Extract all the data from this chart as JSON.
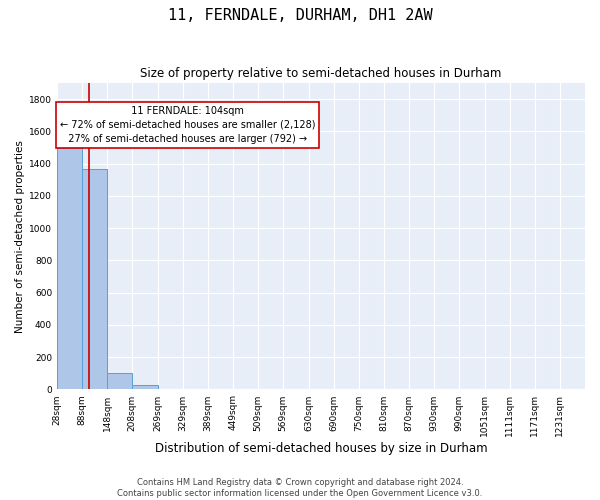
{
  "title": "11, FERNDALE, DURHAM, DH1 2AW",
  "subtitle": "Size of property relative to semi-detached houses in Durham",
  "xlabel": "Distribution of semi-detached houses by size in Durham",
  "ylabel": "Number of semi-detached properties",
  "footer_line1": "Contains HM Land Registry data © Crown copyright and database right 2024.",
  "footer_line2": "Contains public sector information licensed under the Open Government Licence v3.0.",
  "property_size": 104,
  "property_label": "11 FERNDALE: 104sqm",
  "pct_smaller": 72,
  "pct_larger": 27,
  "n_smaller": 2128,
  "n_larger": 792,
  "bin_labels": [
    "28sqm",
    "88sqm",
    "148sqm",
    "208sqm",
    "269sqm",
    "329sqm",
    "389sqm",
    "449sqm",
    "509sqm",
    "569sqm",
    "630sqm",
    "690sqm",
    "750sqm",
    "810sqm",
    "870sqm",
    "930sqm",
    "990sqm",
    "1051sqm",
    "1111sqm",
    "1171sqm",
    "1231sqm"
  ],
  "bin_edges": [
    28,
    88,
    148,
    208,
    269,
    329,
    389,
    449,
    509,
    569,
    630,
    690,
    750,
    810,
    870,
    930,
    990,
    1051,
    1111,
    1171,
    1231
  ],
  "bar_heights": [
    1500,
    1370,
    100,
    30,
    0,
    0,
    0,
    0,
    0,
    0,
    0,
    0,
    0,
    0,
    0,
    0,
    0,
    0,
    0,
    0
  ],
  "bar_color": "#aec6e8",
  "bar_edge_color": "#5a9fd4",
  "background_color": "#e8eef8",
  "grid_color": "#ffffff",
  "annotation_box_color": "#ffffff",
  "annotation_box_edge": "#cc0000",
  "vline_color": "#cc0000",
  "ylim": [
    0,
    1900
  ],
  "yticks": [
    0,
    200,
    400,
    600,
    800,
    1000,
    1200,
    1400,
    1600,
    1800
  ],
  "title_fontsize": 11,
  "subtitle_fontsize": 8.5,
  "ylabel_fontsize": 7.5,
  "xlabel_fontsize": 8.5,
  "footer_fontsize": 6,
  "tick_fontsize": 6.5,
  "annot_fontsize": 7
}
